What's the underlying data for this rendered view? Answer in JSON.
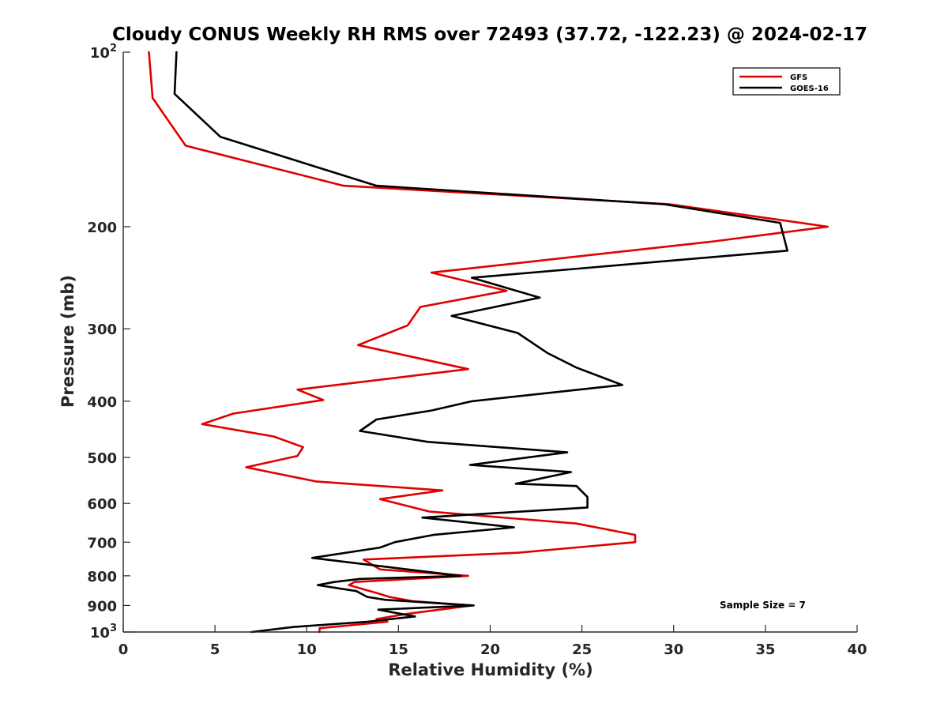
{
  "chart_data": {
    "type": "line",
    "title": "Cloudy CONUS Weekly RH RMS over 72493 (37.72, -122.23) @ 2024-02-17",
    "xlabel": "Relative Humidity (%)",
    "ylabel": "Pressure (mb)",
    "xlim": [
      0,
      40
    ],
    "ylim": [
      100,
      1000
    ],
    "y_scale": "log",
    "y_reversed": true,
    "xticks": [
      0,
      5,
      10,
      15,
      20,
      25,
      30,
      35,
      40
    ],
    "xtick_labels": [
      "0",
      "5",
      "10",
      "15",
      "20",
      "25",
      "30",
      "35",
      "40"
    ],
    "yticks": [
      100,
      200,
      300,
      400,
      500,
      600,
      700,
      800,
      900,
      1000
    ],
    "ytick_labels": [
      {
        "base": "10",
        "exp": "2"
      },
      {
        "base": "200",
        "exp": ""
      },
      {
        "base": "300",
        "exp": ""
      },
      {
        "base": "400",
        "exp": ""
      },
      {
        "base": "500",
        "exp": ""
      },
      {
        "base": "600",
        "exp": ""
      },
      {
        "base": "700",
        "exp": ""
      },
      {
        "base": "800",
        "exp": ""
      },
      {
        "base": "900",
        "exp": ""
      },
      {
        "base": "10",
        "exp": "3"
      }
    ],
    "grid": false,
    "legend_position": "top-right",
    "annotation": "Sample Size = 7",
    "series": [
      {
        "name": "GFS",
        "color": "#e00000",
        "x": [
          1.4,
          1.6,
          3.4,
          12.0,
          29.8,
          38.4,
          32.2,
          16.8,
          20.9,
          16.2,
          15.5,
          12.8,
          18.8,
          9.5,
          10.9,
          6.0,
          4.3,
          8.2,
          9.8,
          9.5,
          6.7,
          10.5,
          17.4,
          14.0,
          16.7,
          24.7,
          27.9,
          27.9,
          21.5,
          13.1,
          14.0,
          18.8,
          12.6,
          12.3,
          14.0,
          14.5,
          15.8,
          19.0,
          15.5,
          13.8,
          14.4,
          10.7,
          10.7
        ],
        "y": [
          100,
          120,
          145,
          170,
          183,
          200,
          212,
          240,
          258,
          275,
          296,
          320,
          352,
          382,
          398,
          420,
          438,
          460,
          480,
          497,
          520,
          550,
          570,
          590,
          620,
          650,
          680,
          700,
          730,
          750,
          780,
          800,
          820,
          830,
          860,
          870,
          885,
          900,
          930,
          950,
          960,
          985,
          1000
        ]
      },
      {
        "name": "GOES-16",
        "color": "#000000",
        "x": [
          2.9,
          2.8,
          5.3,
          13.8,
          29.5,
          35.8,
          36.2,
          19.0,
          22.7,
          17.9,
          21.5,
          23.1,
          24.7,
          27.2,
          19.0,
          16.8,
          13.8,
          12.9,
          16.6,
          24.2,
          18.9,
          24.4,
          21.4,
          24.7,
          25.3,
          25.3,
          16.3,
          21.3,
          16.9,
          14.8,
          14.0,
          10.3,
          18.4,
          12.9,
          11.5,
          10.6,
          12.7,
          13.3,
          14.3,
          19.1,
          13.9,
          15.9,
          13.3,
          9.3,
          7.0
        ],
        "y": [
          100,
          118,
          140,
          170,
          183,
          197,
          220,
          245,
          265,
          285,
          305,
          330,
          350,
          375,
          400,
          415,
          430,
          450,
          470,
          490,
          515,
          530,
          555,
          560,
          585,
          610,
          635,
          660,
          680,
          700,
          715,
          745,
          800,
          810,
          820,
          830,
          850,
          870,
          880,
          900,
          915,
          940,
          960,
          980,
          1000
        ]
      }
    ]
  }
}
